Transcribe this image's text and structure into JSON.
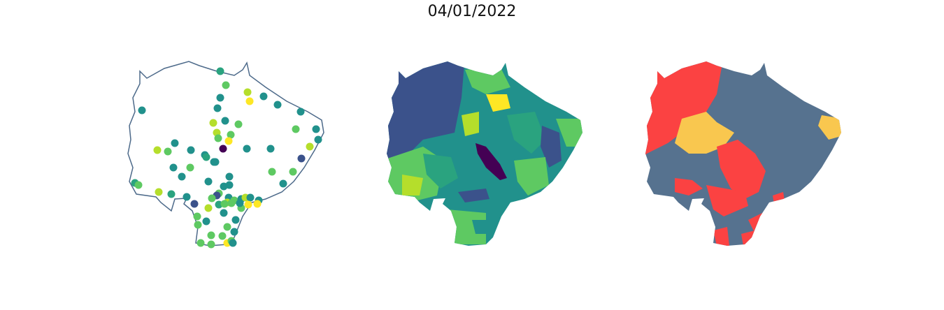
{
  "title": "04/01/2022",
  "colors": {
    "outline": "#4d6a8a",
    "cat_gray": "#56728f",
    "cat_red": "#fb4242",
    "cat_yellow": "#f9c74f",
    "viridis": [
      "#440154",
      "#3b528b",
      "#21918c",
      "#2aa37f",
      "#5ec962",
      "#b5de2b",
      "#fde725"
    ]
  },
  "panels": [
    {
      "name": "points-map"
    },
    {
      "name": "choropleth-map"
    },
    {
      "name": "category-map"
    }
  ]
}
